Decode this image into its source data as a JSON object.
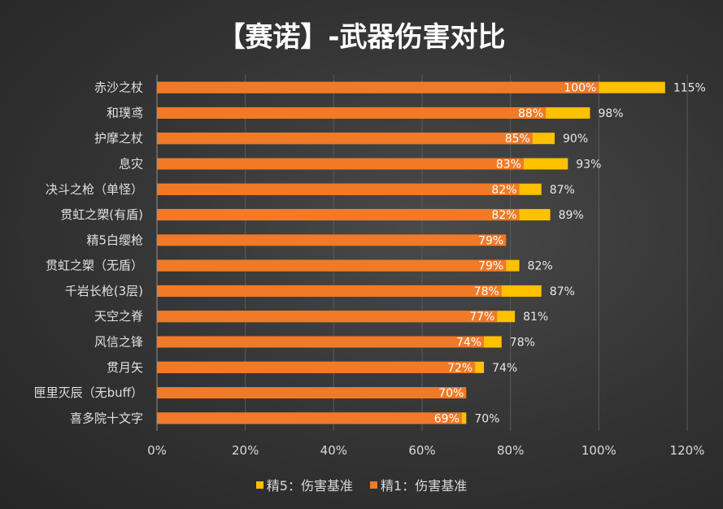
{
  "chart_data": {
    "type": "bar",
    "orientation": "horizontal",
    "title": "【赛诺】-武器伤害对比",
    "categories": [
      "赤沙之杖",
      "和璞鸢",
      "护摩之杖",
      "息灾",
      "决斗之枪（单怪）",
      "贯虹之槊(有盾)",
      "精5白缨枪",
      "贯虹之槊（无盾）",
      "千岩长枪(3层)",
      "天空之脊",
      "风信之锋",
      "贯月矢",
      "匣里灭辰（无buff）",
      "喜多院十文字"
    ],
    "series": [
      {
        "name": "精5：伤害基准",
        "color": "#ffc000",
        "values": [
          115,
          98,
          90,
          93,
          87,
          89,
          null,
          82,
          87,
          81,
          78,
          74,
          null,
          70
        ],
        "labels": [
          "115%",
          "98%",
          "90%",
          "93%",
          "87%",
          "89%",
          "",
          "82%",
          "87%",
          "81%",
          "78%",
          "74%",
          "",
          "70%"
        ]
      },
      {
        "name": "精1：伤害基准",
        "color": "#f07a28",
        "values": [
          100,
          88,
          85,
          83,
          82,
          82,
          79,
          79,
          78,
          77,
          74,
          72,
          70,
          69
        ],
        "labels": [
          "100%",
          "88%",
          "85%",
          "83%",
          "82%",
          "82%",
          "79%",
          "79%",
          "78%",
          "77%",
          "74%",
          "72%",
          "70%",
          "69%"
        ]
      }
    ],
    "xlim": [
      0,
      120
    ],
    "xticks": [
      "0%",
      "20%",
      "40%",
      "60%",
      "80%",
      "100%",
      "120%"
    ],
    "grid": true,
    "legend": "bottom"
  }
}
